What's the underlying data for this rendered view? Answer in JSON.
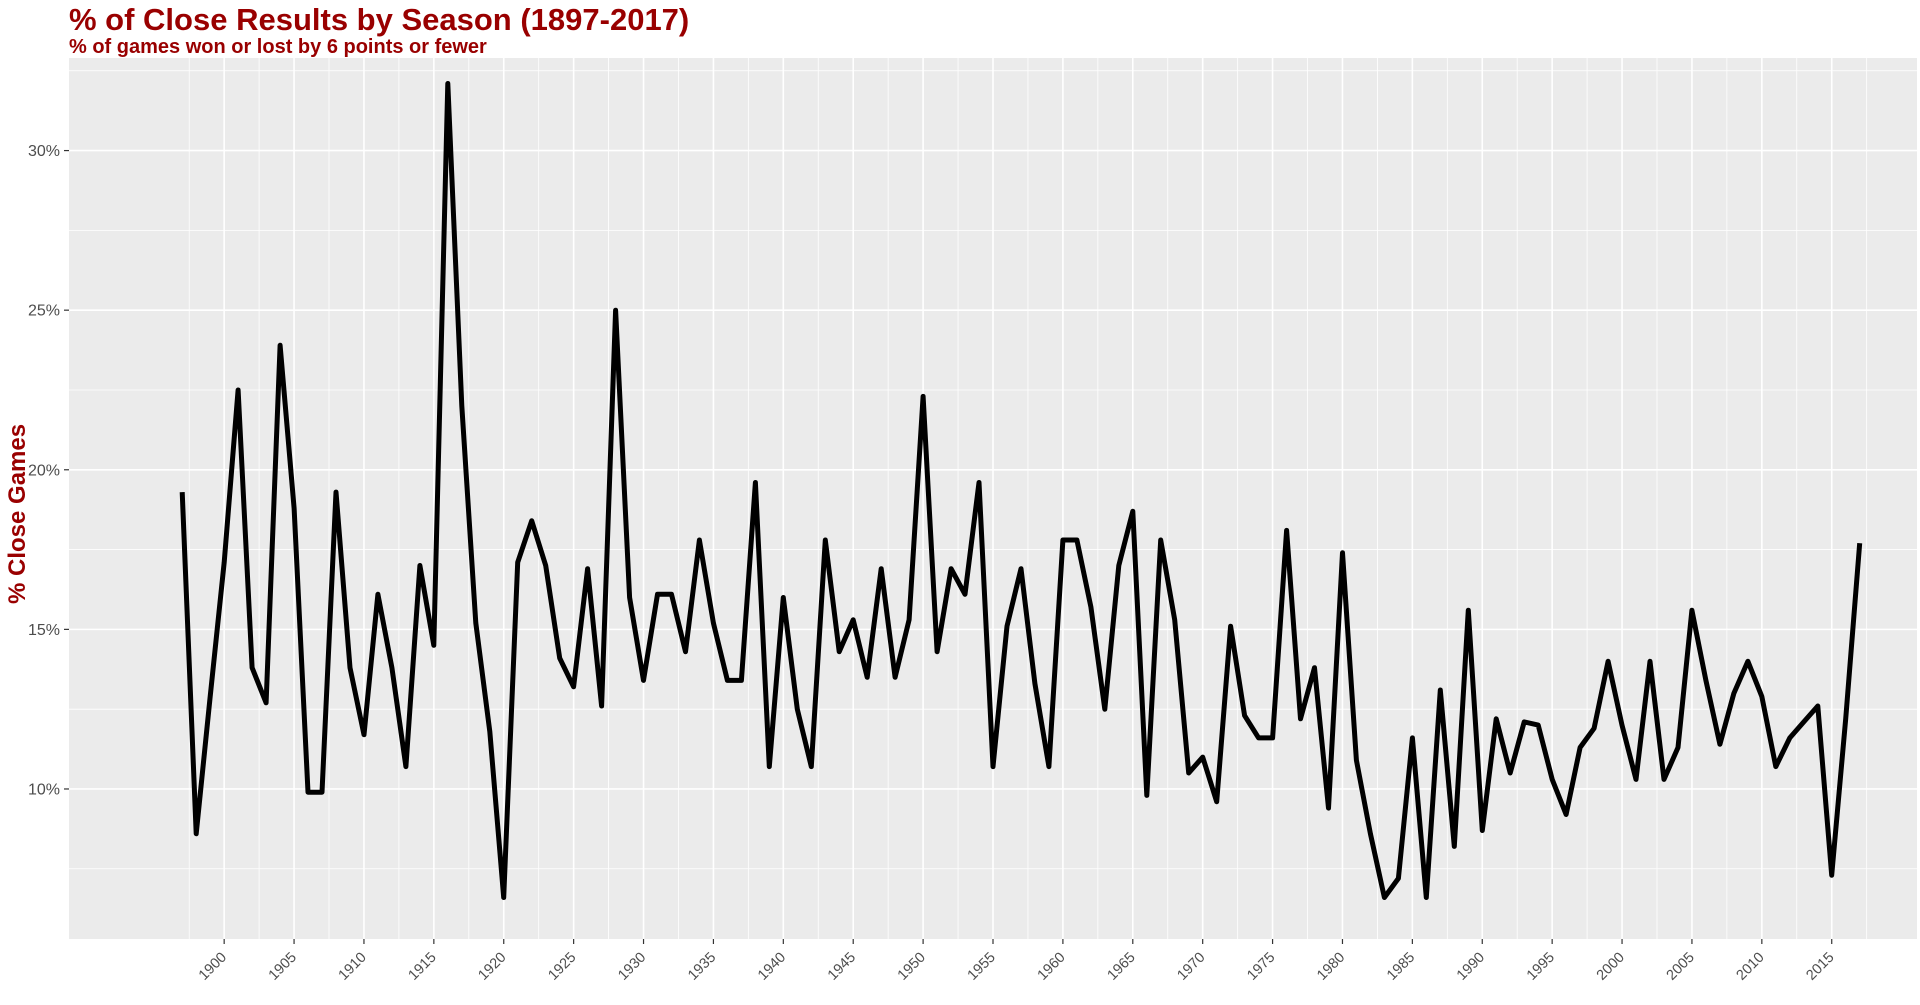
{
  "chart_data": {
    "type": "line",
    "title": "% of Close Results by Season (1897-2017)",
    "subtitle": "% of games won or lost by 6 points or fewer",
    "xlabel": "",
    "ylabel": "% Close Games",
    "xlim": [
      1888.9,
      2021.1
    ],
    "ylim": [
      5.3,
      32.9
    ],
    "x_ticks": [
      "1900",
      "1905",
      "1910",
      "1915",
      "1920",
      "1925",
      "1930",
      "1935",
      "1940",
      "1945",
      "1950",
      "1955",
      "1960",
      "1965",
      "1970",
      "1975",
      "1980",
      "1985",
      "1990",
      "1995",
      "2000",
      "2005",
      "2010",
      "2015"
    ],
    "y_ticks": [
      "10%",
      "15%",
      "20%",
      "25%",
      "30%"
    ],
    "grid": true,
    "series": [
      {
        "color": "#000000",
        "x": [
          1897,
          1898,
          1899,
          1900,
          1901,
          1902,
          1903,
          1904,
          1905,
          1906,
          1907,
          1908,
          1909,
          1910,
          1911,
          1912,
          1913,
          1914,
          1915,
          1916,
          1917,
          1918,
          1919,
          1920,
          1921,
          1922,
          1923,
          1924,
          1925,
          1926,
          1927,
          1928,
          1929,
          1930,
          1931,
          1932,
          1933,
          1934,
          1935,
          1936,
          1937,
          1938,
          1939,
          1940,
          1941,
          1942,
          1943,
          1944,
          1945,
          1946,
          1947,
          1948,
          1949,
          1950,
          1951,
          1952,
          1953,
          1954,
          1955,
          1956,
          1957,
          1958,
          1959,
          1960,
          1961,
          1962,
          1963,
          1964,
          1965,
          1966,
          1967,
          1968,
          1969,
          1970,
          1971,
          1972,
          1973,
          1974,
          1975,
          1976,
          1977,
          1978,
          1979,
          1980,
          1981,
          1982,
          1983,
          1984,
          1985,
          1986,
          1987,
          1988,
          1989,
          1990,
          1991,
          1992,
          1993,
          1994,
          1995,
          1996,
          1997,
          1998,
          1999,
          2000,
          2001,
          2002,
          2003,
          2004,
          2005,
          2006,
          2007,
          2008,
          2009,
          2010,
          2011,
          2012,
          2013,
          2014,
          2015,
          2016,
          2017
        ],
        "y": [
          19.3,
          8.6,
          12.9,
          17.1,
          22.5,
          13.8,
          12.7,
          23.9,
          18.8,
          9.9,
          9.9,
          19.3,
          13.8,
          11.7,
          16.1,
          13.8,
          10.7,
          17.0,
          14.5,
          32.1,
          22.0,
          15.2,
          11.8,
          6.6,
          17.1,
          18.4,
          17.0,
          14.1,
          13.2,
          16.9,
          12.6,
          25.0,
          16.0,
          13.4,
          16.1,
          16.1,
          14.3,
          17.8,
          15.2,
          13.4,
          13.4,
          19.6,
          10.7,
          16.0,
          12.5,
          10.7,
          17.8,
          14.3,
          15.3,
          13.5,
          16.9,
          13.5,
          15.3,
          22.3,
          14.3,
          16.9,
          16.1,
          19.6,
          10.7,
          15.1,
          16.9,
          13.3,
          10.7,
          17.8,
          17.8,
          15.7,
          12.5,
          17.0,
          18.7,
          9.8,
          17.8,
          15.3,
          10.5,
          11.0,
          9.6,
          15.1,
          12.3,
          11.6,
          11.6,
          18.1,
          12.2,
          13.8,
          9.4,
          17.4,
          10.9,
          8.6,
          6.6,
          7.2,
          11.6,
          6.6,
          13.1,
          8.2,
          15.6,
          8.7,
          12.2,
          10.5,
          12.1,
          12.0,
          10.3,
          9.2,
          11.3,
          11.9,
          14.0,
          12.0,
          10.3,
          14.0,
          10.3,
          11.3,
          15.6,
          13.4,
          11.4,
          13.0,
          14.0,
          12.9,
          10.7,
          11.6,
          12.1,
          12.6,
          7.3,
          12.2,
          17.7
        ]
      }
    ]
  }
}
